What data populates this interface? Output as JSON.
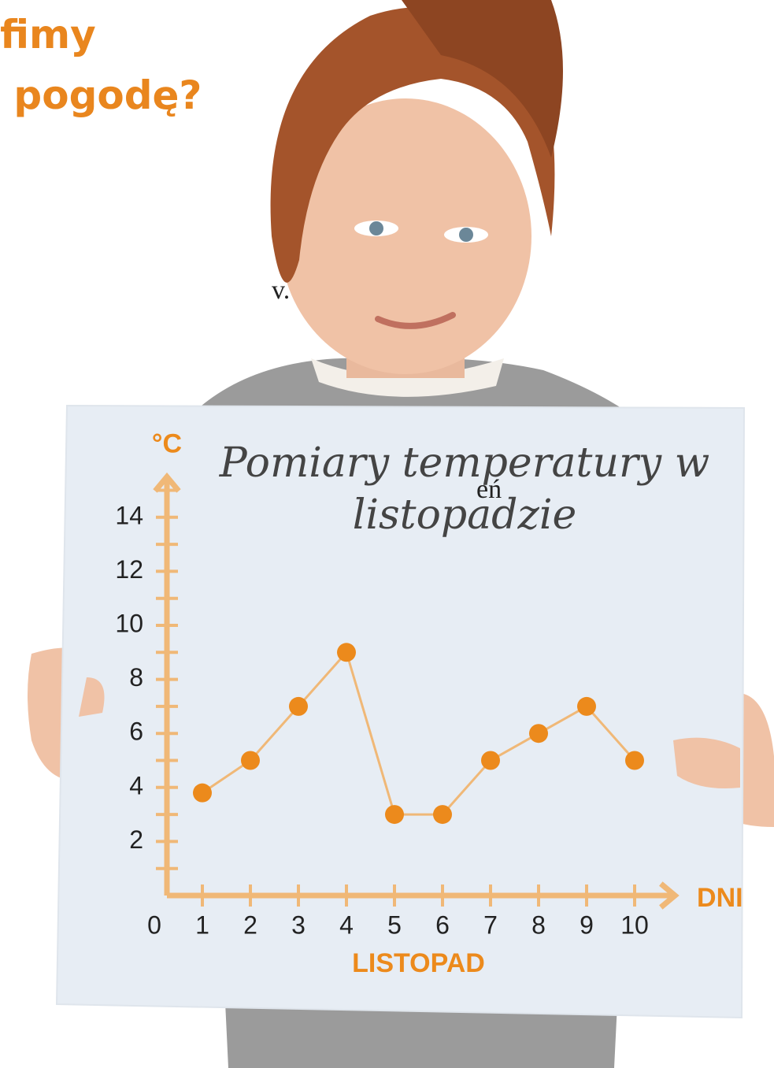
{
  "page_text": {
    "heading_line1": "fimy",
    "heading_line2": "pogodę?",
    "fragment1": "v.",
    "fragment2": "eń"
  },
  "chart_data": {
    "type": "line",
    "title": "Pomiary temperatury w listopadzie",
    "y_label": "°C",
    "x_label": "DNI",
    "x_sublabel": "LISTOPAD",
    "x": [
      1,
      2,
      3,
      4,
      5,
      6,
      7,
      8,
      9,
      10
    ],
    "series": [
      {
        "color": "#ec8a1c",
        "values": [
          3.8,
          5,
          7,
          9,
          3,
          3,
          5,
          6,
          7,
          5
        ]
      }
    ],
    "xlim": [
      0,
      10.3
    ],
    "ylim": [
      0,
      15.5
    ],
    "xticks": [
      0,
      1,
      2,
      3,
      4,
      5,
      6,
      7,
      8,
      9,
      10
    ],
    "yticks": [
      2,
      4,
      6,
      8,
      10,
      12,
      14
    ],
    "y_minor_ticks": [
      1,
      3,
      5,
      7,
      9,
      11,
      13,
      15
    ],
    "axis_color": "#f0b877"
  }
}
